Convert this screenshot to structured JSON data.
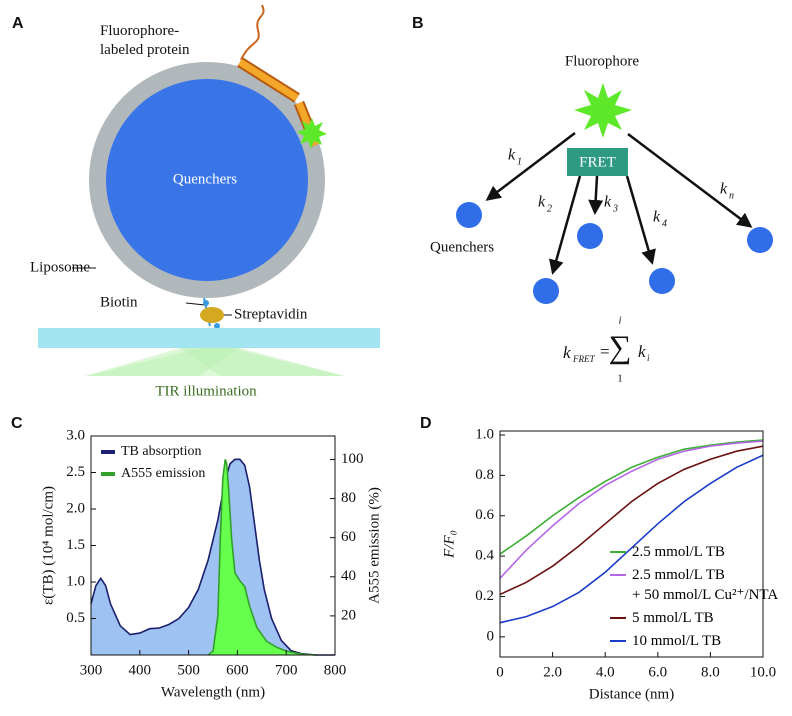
{
  "panel_a": {
    "letter": "A",
    "protein_label": "Fluorophore-\nlabeled protein",
    "core_label": "Quenchers",
    "liposome_label": "Liposome",
    "biotin_label": "Biotin",
    "streptavidin_label": "Streptavidin",
    "illumination_label": "TIR illumination"
  },
  "panel_b": {
    "letter": "B",
    "donor_label": "Fluorophore",
    "transfer_label": "FRET",
    "acceptor_label": "Quenchers",
    "rates": [
      {
        "symbol": "k",
        "index": "1"
      },
      {
        "symbol": "k",
        "index": "2"
      },
      {
        "symbol": "k",
        "index": "3"
      },
      {
        "symbol": "k",
        "index": "4"
      },
      {
        "symbol": "k",
        "index": "n"
      }
    ],
    "formula": {
      "lhs": "k",
      "lhs_index": "FRET",
      "equals": "=",
      "sum": "∑",
      "upper": "i",
      "lower": "1",
      "term": "k",
      "term_index": "i"
    }
  },
  "chart_data": [
    {
      "type": "area",
      "letter": "C",
      "xlabel": "Wavelength (nm)",
      "ylabel": "ε(TB) (10⁴ mol/cm)",
      "y2label": "A555 emission (%)",
      "xlim": [
        300,
        800
      ],
      "xticks": [
        300,
        400,
        500,
        600,
        700,
        800
      ],
      "ylim": [
        0,
        3
      ],
      "yticks": [
        0.5,
        {
          "value": 1,
          "label": "1.0"
        },
        1.5,
        {
          "value": 2,
          "label": "2.0"
        },
        2.5,
        {
          "value": 3,
          "label": "3.0"
        }
      ],
      "y2lim": [
        0,
        112
      ],
      "y2ticks": [
        20,
        40,
        60,
        80,
        100
      ],
      "legend": "upper left",
      "series": [
        {
          "name": "TB absorption",
          "color": "#1b1f6e",
          "fill": "#9ec2f2",
          "x": [
            300,
            310,
            320,
            330,
            340,
            360,
            380,
            400,
            420,
            440,
            460,
            480,
            500,
            520,
            540,
            560,
            575,
            585,
            595,
            605,
            615,
            625,
            635,
            645,
            655,
            670,
            690,
            710,
            730,
            760,
            800
          ],
          "values": [
            0.7,
            0.95,
            1.05,
            0.95,
            0.7,
            0.4,
            0.28,
            0.3,
            0.36,
            0.37,
            0.42,
            0.5,
            0.65,
            0.9,
            1.3,
            1.85,
            2.4,
            2.62,
            2.68,
            2.68,
            2.6,
            2.3,
            1.8,
            1.3,
            0.9,
            0.5,
            0.2,
            0.06,
            0.02,
            0,
            0
          ]
        },
        {
          "name": "A555 emission",
          "color": "#34a02c",
          "fill": "#66ff4d",
          "axis": "y2",
          "x": [
            540,
            550,
            560,
            565,
            570,
            575,
            578,
            582,
            588,
            595,
            605,
            615,
            625,
            640,
            660,
            680,
            700,
            730,
            760
          ],
          "values": [
            0,
            2,
            20,
            60,
            90,
            100,
            98,
            85,
            60,
            42,
            38,
            35,
            25,
            14,
            7,
            4,
            2,
            0.5,
            0
          ]
        }
      ]
    },
    {
      "type": "line",
      "letter": "D",
      "xlabel": "Distance (nm)",
      "ylabel": "F/F₀",
      "x": [
        0,
        1,
        2,
        3,
        4,
        5,
        6,
        7,
        8,
        9,
        10
      ],
      "xlim": [
        0,
        10
      ],
      "xticks": [
        0,
        {
          "value": 2,
          "label": "2.0"
        },
        {
          "value": 4,
          "label": "4.0"
        },
        {
          "value": 6,
          "label": "6.0"
        },
        {
          "value": 8,
          "label": "8.0"
        },
        {
          "value": 10,
          "label": "10.0"
        }
      ],
      "ylim": [
        -0.1,
        1.02
      ],
      "yticks": [
        0,
        0.2,
        0.4,
        0.6,
        0.8,
        {
          "value": 1,
          "label": "1.0"
        }
      ],
      "legend": "lower right",
      "series": [
        {
          "name": "2.5 mmol/L TB",
          "color": "#3cb034",
          "values": [
            0.41,
            0.5,
            0.6,
            0.69,
            0.77,
            0.84,
            0.89,
            0.93,
            0.95,
            0.965,
            0.975
          ]
        },
        {
          "name": "2.5 mmol/L TB\n+ 50 mmol/L Cu²⁺/NTA",
          "color": "#b366e6",
          "values": [
            0.29,
            0.43,
            0.55,
            0.66,
            0.75,
            0.82,
            0.88,
            0.92,
            0.945,
            0.96,
            0.97
          ]
        },
        {
          "name": "5 mmol/L TB",
          "color": "#6b1010",
          "values": [
            0.21,
            0.27,
            0.35,
            0.45,
            0.56,
            0.67,
            0.76,
            0.83,
            0.88,
            0.92,
            0.945
          ]
        },
        {
          "name": "10 mmol/L TB",
          "color": "#1a3cc8",
          "values": [
            0.07,
            0.1,
            0.15,
            0.22,
            0.32,
            0.44,
            0.56,
            0.67,
            0.76,
            0.84,
            0.9
          ]
        }
      ]
    }
  ]
}
